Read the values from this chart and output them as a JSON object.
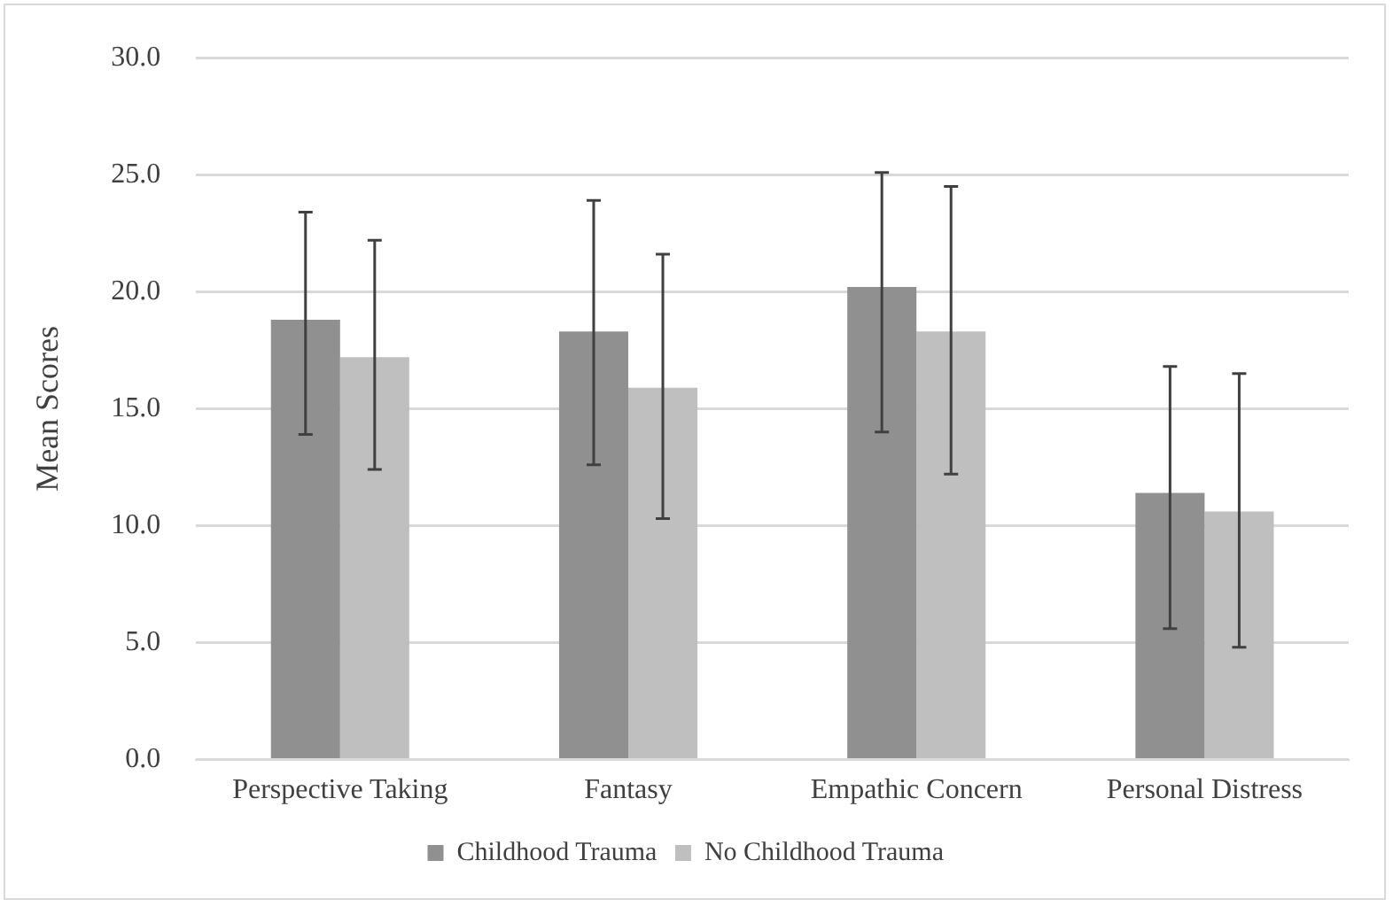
{
  "chart_data": {
    "type": "bar",
    "ylabel": "Mean Scores",
    "categories": [
      "Perspective Taking",
      "Fantasy",
      "Empathic Concern",
      "Personal Distress"
    ],
    "series": [
      {
        "name": "Childhood Trauma",
        "color": "#909090",
        "values": [
          18.8,
          18.3,
          20.2,
          11.4
        ],
        "errors": [
          [
            13.9,
            23.4
          ],
          [
            12.6,
            23.9
          ],
          [
            14.0,
            25.1
          ],
          [
            5.6,
            16.8
          ]
        ]
      },
      {
        "name": "No Childhood Trauma",
        "color": "#bfbfbf",
        "values": [
          17.2,
          15.9,
          18.3,
          10.6
        ],
        "errors": [
          [
            12.4,
            22.2
          ],
          [
            10.3,
            21.6
          ],
          [
            12.2,
            24.5
          ],
          [
            4.8,
            16.5
          ]
        ]
      }
    ],
    "ylim": [
      0,
      30
    ],
    "yticks": [
      {
        "value": 0,
        "label": "0.0"
      },
      {
        "value": 5,
        "label": "5.0"
      },
      {
        "value": 10,
        "label": "10.0"
      },
      {
        "value": 15,
        "label": "15.0"
      },
      {
        "value": 20,
        "label": "20.0"
      },
      {
        "value": 25,
        "label": "25.0"
      },
      {
        "value": 30,
        "label": "30.0"
      }
    ],
    "grid": "y",
    "legend": "bottom"
  }
}
